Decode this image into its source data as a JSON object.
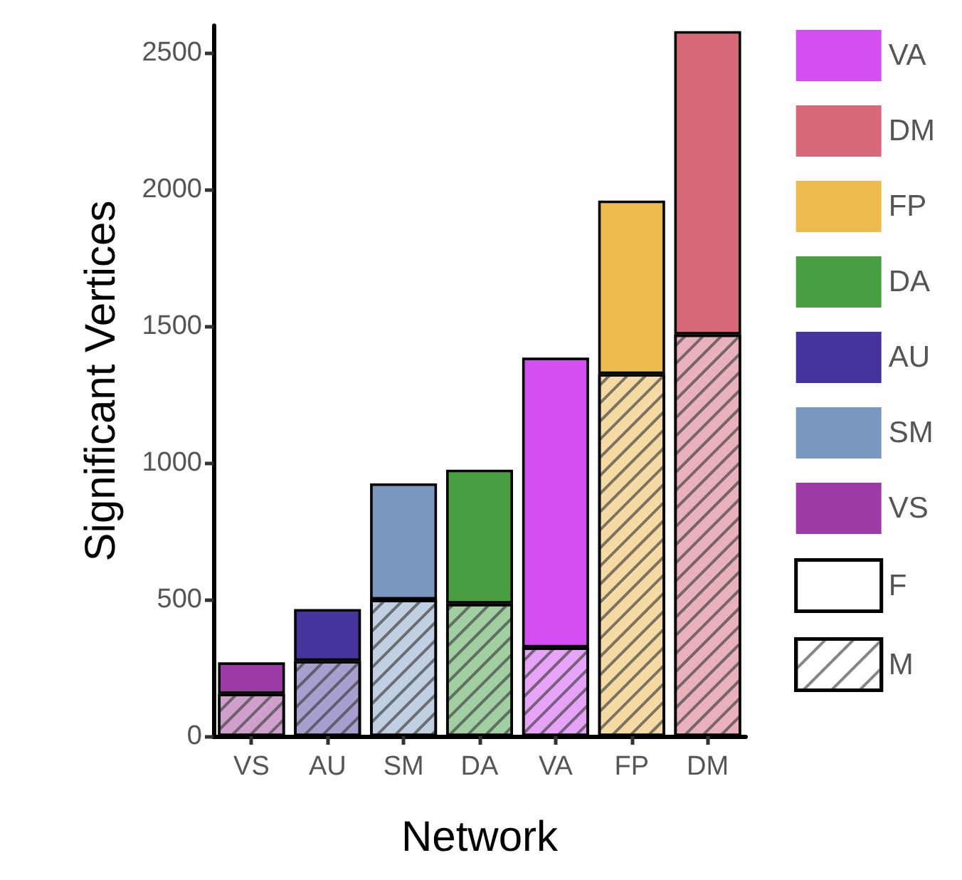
{
  "chart_data": {
    "type": "bar",
    "stacked": true,
    "xlabel": "Network",
    "ylabel": "Significant Vertices",
    "categories": [
      "VS",
      "AU",
      "SM",
      "DA",
      "VA",
      "FP",
      "DM"
    ],
    "ylim": [
      0,
      2600
    ],
    "yticks": [
      0,
      500,
      1000,
      1500,
      2000,
      2500
    ],
    "grid": false,
    "legend": "right",
    "series": [
      {
        "name": "M",
        "colors": [
          "#d0a0cc",
          "#a99fcf",
          "#c0cfe2",
          "#a1cfa2",
          "#e6a3f7",
          "#f5dba3",
          "#e8b1bc"
        ],
        "values": [
          155,
          275,
          500,
          485,
          325,
          1325,
          1470
        ]
      },
      {
        "name": "VA",
        "color": "#d44ff2",
        "values": [
          null,
          null,
          null,
          null,
          1060,
          null,
          null
        ]
      },
      {
        "name": "DM",
        "color": "#d66877",
        "values": [
          null,
          null,
          null,
          null,
          null,
          null,
          1110
        ]
      },
      {
        "name": "FP",
        "color": "#ecba4e",
        "values": [
          null,
          null,
          null,
          null,
          null,
          635,
          null
        ]
      },
      {
        "name": "DA",
        "color": "#489e41",
        "values": [
          null,
          null,
          null,
          490,
          null,
          null,
          null
        ]
      },
      {
        "name": "AU",
        "color": "#46339c",
        "values": [
          null,
          190,
          null,
          null,
          null,
          null,
          null
        ]
      },
      {
        "name": "SM",
        "color": "#7a97c0",
        "values": [
          null,
          null,
          425,
          null,
          null,
          null,
          null
        ]
      },
      {
        "name": "VS",
        "color": "#9d3ba6",
        "values": [
          115,
          null,
          null,
          null,
          null,
          null,
          null
        ]
      },
      {
        "name": "F",
        "color": "#ffffff",
        "values": [
          null,
          null,
          null,
          null,
          null,
          null,
          null
        ]
      }
    ]
  }
}
